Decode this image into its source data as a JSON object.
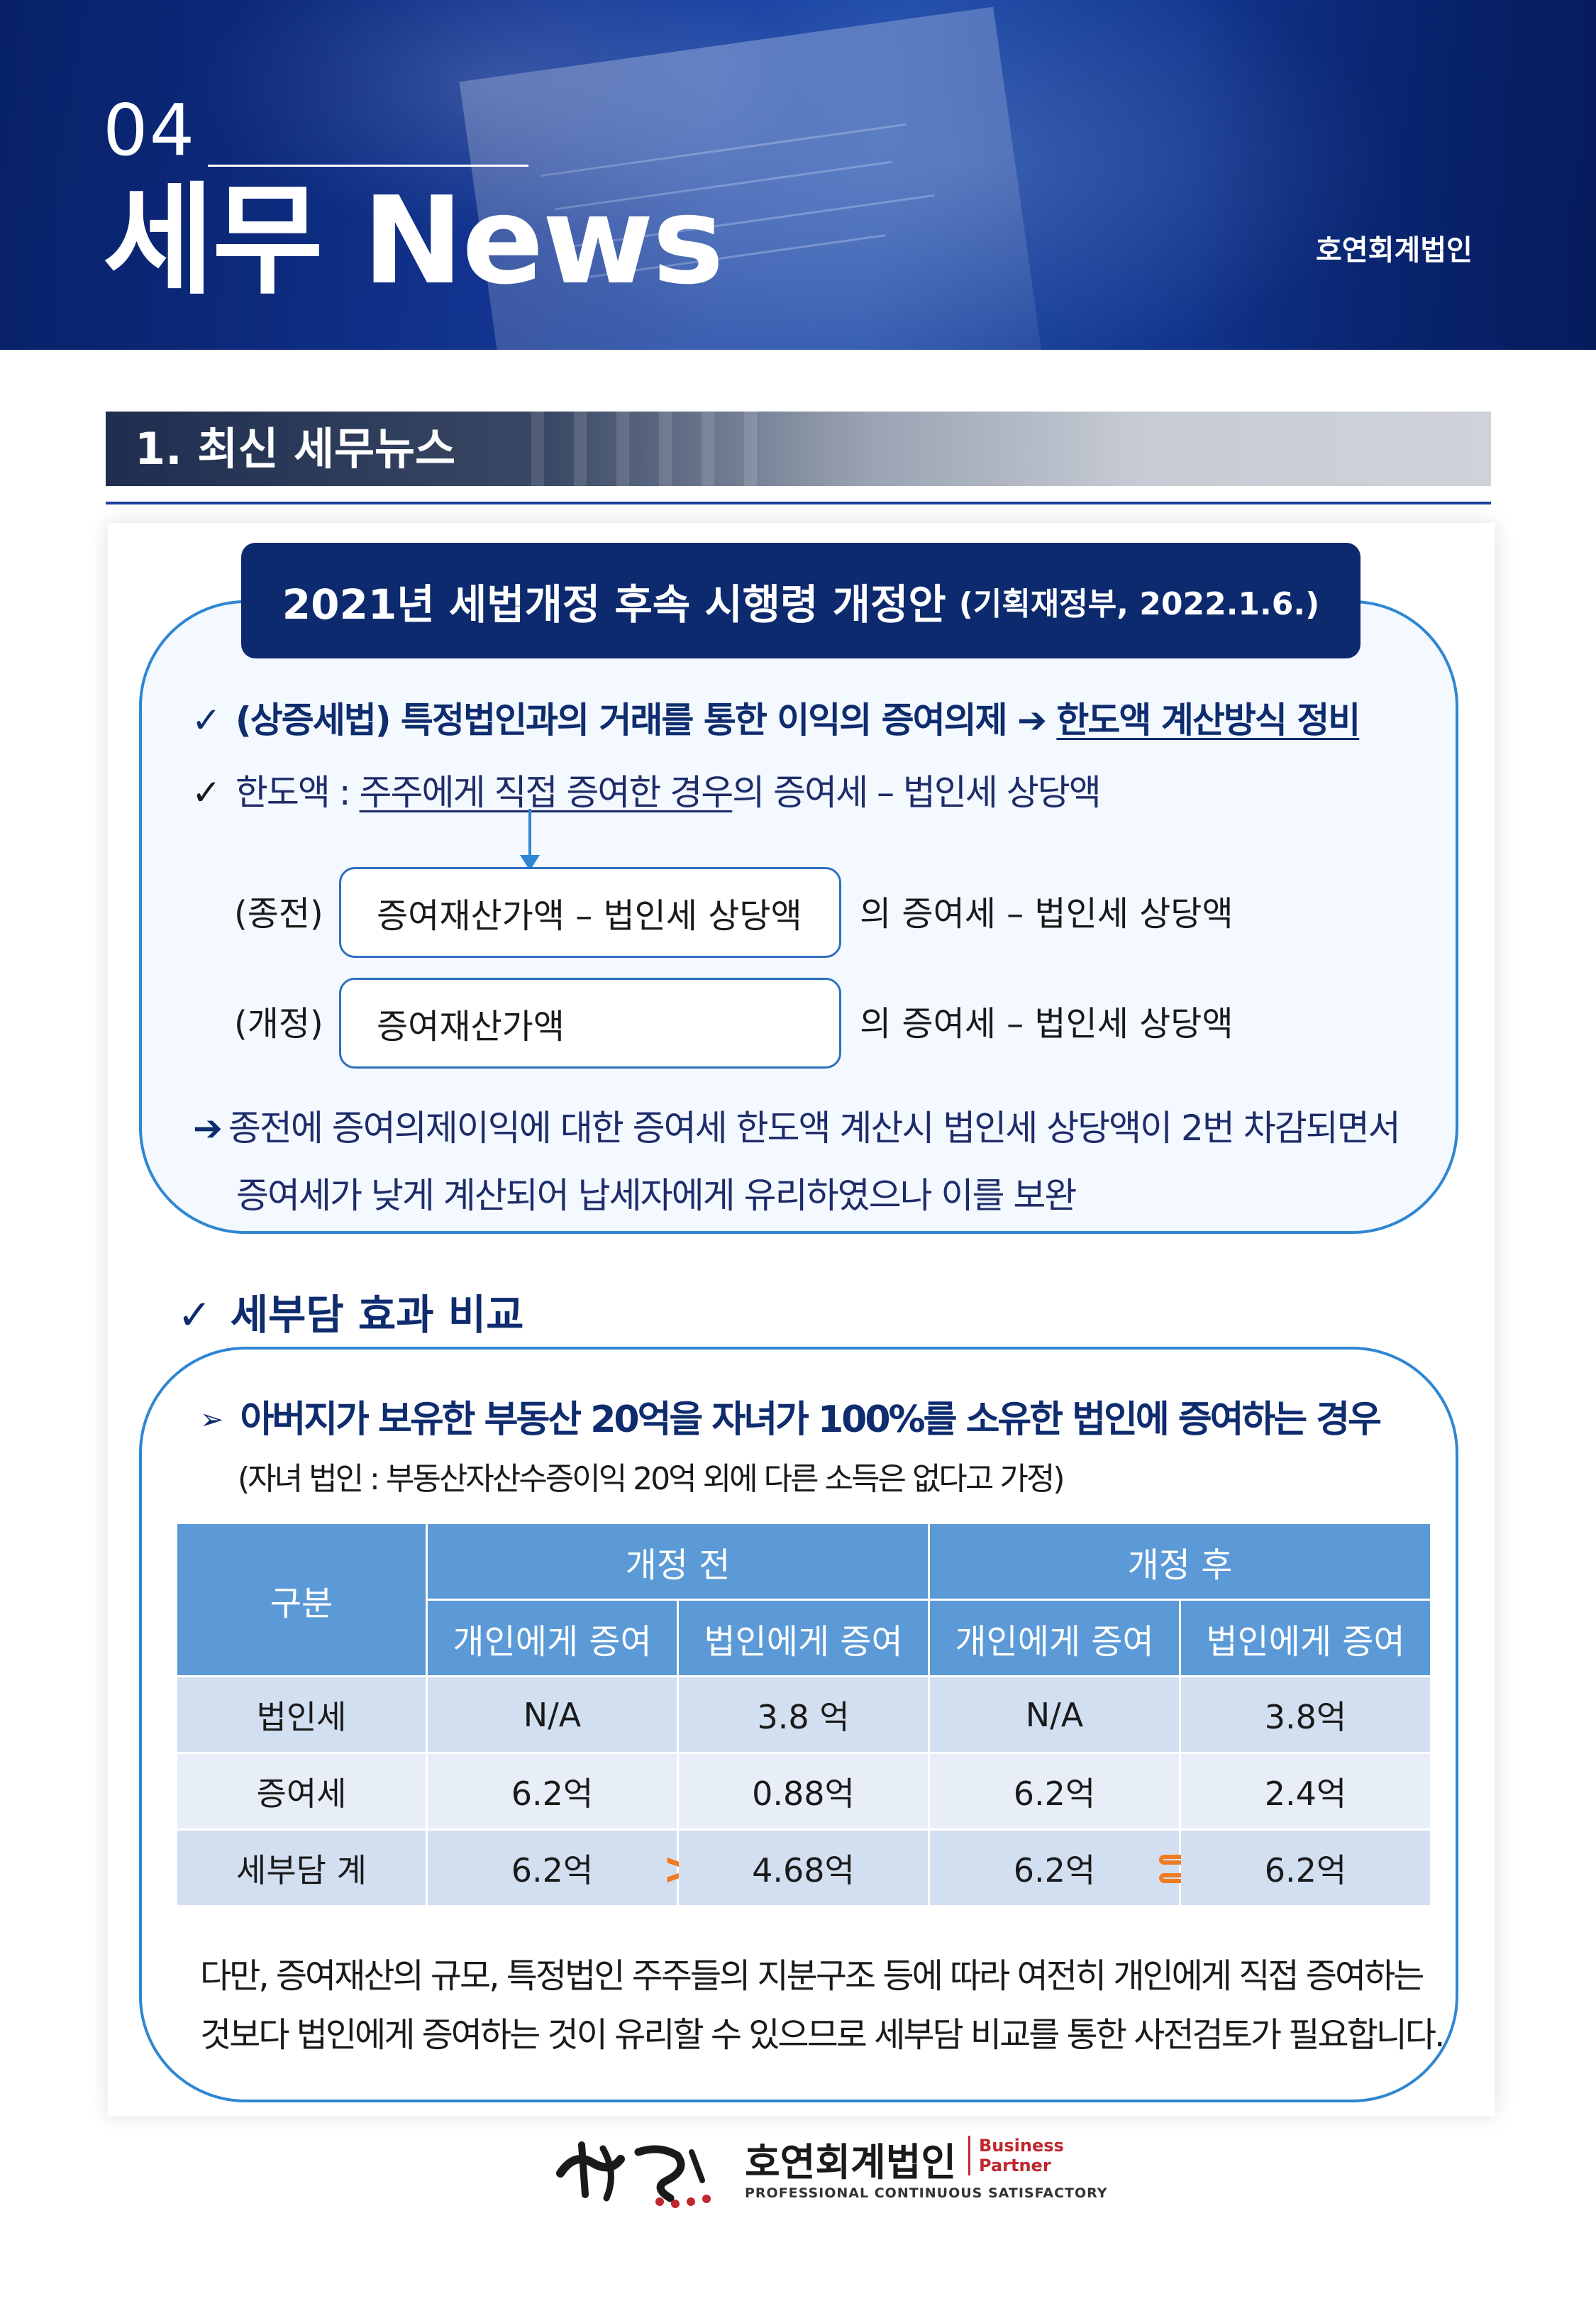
{
  "header": {
    "issue_number": "04",
    "title": "세무 News",
    "firm": "호연회계법인"
  },
  "section": {
    "title": "1. 최신 세무뉴스"
  },
  "amendment": {
    "title": "2021년 세법개정 후속 시행령 개정안",
    "source": "(기획재정부, 2022.1.6.)",
    "point1_prefix": "(상증세법) 특정법인과의 거래를 통한 이익의 증여의제",
    "point1_arrow": "➔",
    "point1_emphasis": "한도액 계산방식 정비",
    "point2_prefix": "한도액 : ",
    "point2_emphasis": "주주에게 직접 증여한 경우",
    "point2_suffix": "의 증여세 – 법인세 상당액",
    "before_label": "(종전)",
    "before_formula": "증여재산가액 – 법인세 상당액",
    "before_tail": "의 증여세 – 법인세 상당액",
    "after_label": "(개정)",
    "after_formula": "증여재산가액",
    "after_tail": "의 증여세 – 법인세 상당액",
    "conclusion_line1": "종전에 증여의제이익에 대한 증여세 한도액 계산시 법인세 상당액이 2번 차감되면서",
    "conclusion_line2": "증여세가 낮게 계산되어 납세자에게 유리하였으나 이를 보완",
    "conclusion_arrow": "➔",
    "check_mark": "✓"
  },
  "comparison": {
    "heading": "세부담 효과 비교",
    "case_marker": "➢",
    "case": "아버지가 보유한 부동산 20억을 자녀가 100%를 소유한 법인에 증여하는 경우",
    "note": "(자녀 법인 : 부동산자산수증이익 20억 외에 다른 소득은 없다고 가정)",
    "table": {
      "corner": "구분",
      "group_before": "개정 전",
      "group_after": "개정 후",
      "sub_headers": [
        "개인에게 증여",
        "법인에게 증여",
        "개인에게 증여",
        "법인에게 증여"
      ],
      "rows": [
        {
          "label": "법인세",
          "values": [
            "N/A",
            "3.8 억",
            "N/A",
            "3.8억"
          ]
        },
        {
          "label": "증여세",
          "values": [
            "6.2억",
            "0.88억",
            "6.2억",
            "2.4억"
          ]
        },
        {
          "label": "세부담 계",
          "values": [
            "6.2억",
            "4.68억",
            "6.2억",
            "6.2억"
          ]
        }
      ],
      "compare_before": ">",
      "compare_after": "="
    },
    "closing_line1": "다만, 증여재산의 규모, 특정법인 주주들의 지분구조 등에 따라 여전히 개인에게 직접 증여하는",
    "closing_line2": "것보다 법인에게 증여하는 것이 유리할 수 있으므로 세부담 비교를 통한 사전검토가 필요합니다."
  },
  "footer": {
    "logo_name": "호연회계법인",
    "logo_tag_line1": "Business",
    "logo_tag_line2": "Partner",
    "logo_sub": "PROFESSIONAL CONTINUOUS SATISFACTORY"
  },
  "colors": {
    "navy": "#0d2a6e",
    "accent_blue": "#2f86d2",
    "table_header": "#5b9ad6",
    "compare_orange": "#f07c22",
    "logo_red": "#c0272d"
  }
}
